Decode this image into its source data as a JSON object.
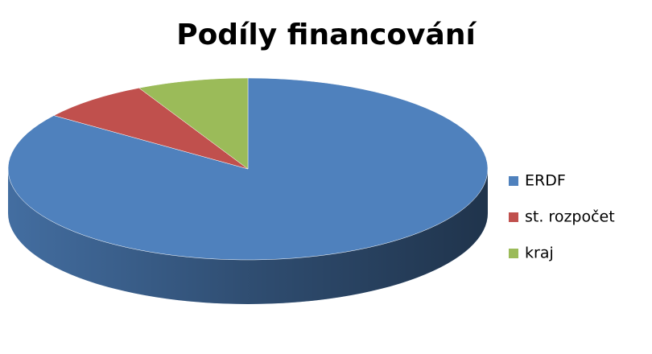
{
  "chart_data": {
    "type": "pie",
    "title": "Podíly financování",
    "categories": [
      "ERDF",
      "st. rozpočet",
      "kraj"
    ],
    "values": [
      85,
      7.5,
      7.5
    ],
    "colors": [
      "#4f81bd",
      "#c0504d",
      "#9bbb59"
    ],
    "legend": "right"
  }
}
